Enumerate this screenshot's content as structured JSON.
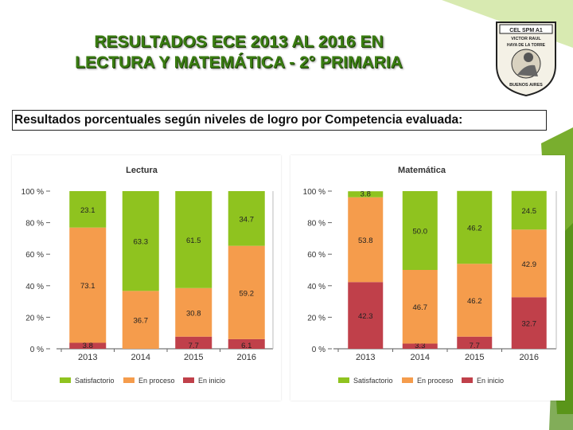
{
  "header": {
    "title_line1": "RESULTADOS ECE 2013 AL 2016 EN",
    "title_line2": "LECTURA Y MATEMÁTICA - 2° PRIMARIA",
    "subtitle": "Resultados porcentuales según niveles de logro por Competencia evaluada:"
  },
  "logo": {
    "name": "school-crest",
    "top_text": "CEL SPM A1",
    "line1": "VICTOR RAUL",
    "line2": "HAYA DE LA TORRE",
    "bottom_text": "BUENOS AIRES"
  },
  "colors": {
    "satisfactorio": "#8fc31f",
    "en_proceso": "#f59c4c",
    "en_inicio": "#c0404a",
    "title_green": "#3a7d12"
  },
  "chart_data": [
    {
      "type": "bar",
      "stacked": true,
      "title": "Lectura",
      "categories": [
        "2013",
        "2014",
        "2015",
        "2016"
      ],
      "yticks": [
        "0 %",
        "20 %",
        "40 %",
        "60 %",
        "80 %",
        "100 %"
      ],
      "ylim": [
        0,
        100
      ],
      "series": [
        {
          "name": "En inicio",
          "key": "en_inicio",
          "values": [
            3.8,
            0,
            7.7,
            6.1
          ],
          "labels": [
            "3.8",
            "",
            "7.7",
            "6.1"
          ]
        },
        {
          "name": "En proceso",
          "key": "en_proceso",
          "values": [
            73.1,
            36.7,
            30.8,
            59.2
          ],
          "labels": [
            "73.1",
            "36.7",
            "30.8",
            "59.2"
          ]
        },
        {
          "name": "Satisfactorio",
          "key": "satisfactorio",
          "values": [
            23.1,
            63.3,
            61.5,
            34.7
          ],
          "labels": [
            "23.1",
            "63.3",
            "61.5",
            "34.7"
          ]
        }
      ],
      "legend": [
        "Satisfactorio",
        "En proceso",
        "En inicio"
      ]
    },
    {
      "type": "bar",
      "stacked": true,
      "title": "Matemática",
      "categories": [
        "2013",
        "2014",
        "2015",
        "2016"
      ],
      "yticks": [
        "0 %",
        "20 %",
        "40 %",
        "60 %",
        "80 %",
        "100 %"
      ],
      "ylim": [
        0,
        100
      ],
      "series": [
        {
          "name": "En inicio",
          "key": "en_inicio",
          "values": [
            42.3,
            3.3,
            7.7,
            32.7
          ],
          "labels": [
            "42.3",
            "3.3",
            "7.7",
            "32.7"
          ]
        },
        {
          "name": "En proceso",
          "key": "en_proceso",
          "values": [
            53.8,
            46.7,
            46.2,
            42.9
          ],
          "labels": [
            "53.8",
            "46.7",
            "46.2",
            "42.9"
          ]
        },
        {
          "name": "Satisfactorio",
          "key": "satisfactorio",
          "values": [
            3.8,
            50.0,
            46.2,
            24.5
          ],
          "labels": [
            "3.8",
            "50.0",
            "46.2",
            "24.5"
          ]
        }
      ],
      "legend": [
        "Satisfactorio",
        "En proceso",
        "En inicio"
      ]
    }
  ]
}
